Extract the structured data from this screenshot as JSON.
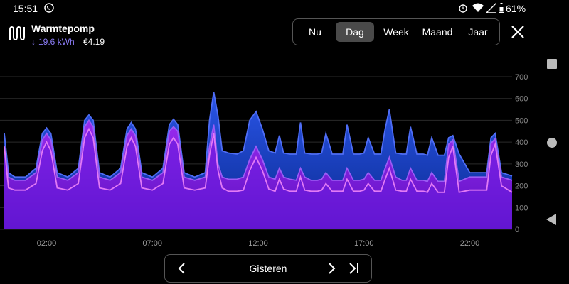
{
  "status": {
    "time": "15:51",
    "battery": "61%"
  },
  "device": {
    "name": "Warmtepomp",
    "consumption": "19.6 kWh",
    "cost": "€4.19"
  },
  "tabs": [
    {
      "label": "Nu",
      "active": false
    },
    {
      "label": "Dag",
      "active": true
    },
    {
      "label": "Week",
      "active": false
    },
    {
      "label": "Maand",
      "active": false
    },
    {
      "label": "Jaar",
      "active": false
    }
  ],
  "pager": {
    "label": "Gisteren"
  },
  "colors": {
    "accent": "#8b7cf6",
    "area_top": "#1f3fbf",
    "area_mid": "#7a20e8",
    "line_top": "#4f6df5",
    "line_mid": "#9b5cf5",
    "line_low": "#e27af5"
  },
  "chart_data": {
    "type": "area",
    "x_ticks": [
      "02:00",
      "07:00",
      "12:00",
      "17:00",
      "22:00"
    ],
    "x_tick_hours": [
      2,
      7,
      12,
      17,
      22
    ],
    "y_ticks": [
      0,
      100,
      200,
      300,
      400,
      500,
      600,
      700
    ],
    "ylim": [
      0,
      700
    ],
    "xlim": [
      0,
      24
    ],
    "series": [
      {
        "x": [
          0,
          0.2,
          0.5,
          1,
          1.5,
          1.8,
          2,
          2.2,
          2.5,
          3,
          3.5,
          3.8,
          4,
          4.2,
          4.5,
          5,
          5.5,
          5.8,
          6,
          6.2,
          6.5,
          7,
          7.5,
          7.8,
          8,
          8.2,
          8.5,
          9,
          9.5,
          9.7,
          9.9,
          10.1,
          10.3,
          10.6,
          11,
          11.3,
          11.6,
          11.9,
          12.2,
          12.5,
          12.8,
          13,
          13.2,
          13.5,
          13.8,
          14,
          14.2,
          14.5,
          14.8,
          15,
          15.2,
          15.5,
          15.8,
          16,
          16.2,
          16.5,
          16.8,
          17,
          17.2,
          17.5,
          17.8,
          18,
          18.2,
          18.5,
          18.8,
          19,
          19.2,
          19.5,
          19.8,
          20,
          20.2,
          20.5,
          20.8,
          21,
          21.2,
          21.5,
          22,
          22.5,
          22.8,
          23,
          23.2,
          23.5,
          24
        ],
        "values": [
          440,
          260,
          240,
          240,
          280,
          440,
          465,
          440,
          260,
          240,
          280,
          500,
          525,
          500,
          260,
          240,
          280,
          460,
          490,
          460,
          260,
          240,
          280,
          480,
          505,
          480,
          260,
          240,
          260,
          500,
          630,
          520,
          360,
          350,
          345,
          360,
          500,
          540,
          460,
          360,
          350,
          430,
          350,
          345,
          345,
          490,
          350,
          345,
          345,
          350,
          440,
          345,
          345,
          345,
          480,
          345,
          345,
          350,
          420,
          345,
          345,
          460,
          550,
          350,
          345,
          345,
          470,
          345,
          345,
          340,
          420,
          340,
          340,
          420,
          430,
          345,
          260,
          260,
          260,
          420,
          440,
          260,
          245
        ]
      },
      {
        "x": [
          0,
          0.2,
          0.5,
          1,
          1.5,
          1.8,
          2,
          2.2,
          2.5,
          3,
          3.5,
          3.8,
          4,
          4.2,
          4.5,
          5,
          5.5,
          5.8,
          6,
          6.2,
          6.5,
          7,
          7.5,
          7.8,
          8,
          8.2,
          8.5,
          9,
          9.5,
          9.7,
          9.9,
          10.1,
          10.3,
          10.6,
          11,
          11.3,
          11.6,
          11.9,
          12.2,
          12.5,
          12.8,
          13,
          13.2,
          13.5,
          13.8,
          14,
          14.2,
          14.5,
          14.8,
          15,
          15.2,
          15.5,
          15.8,
          16,
          16.2,
          16.5,
          16.8,
          17,
          17.2,
          17.5,
          17.8,
          18,
          18.2,
          18.5,
          18.8,
          19,
          19.2,
          19.5,
          19.8,
          20,
          20.2,
          20.5,
          20.8,
          21,
          21.2,
          21.5,
          22,
          22.5,
          22.8,
          23,
          23.2,
          23.5,
          24
        ],
        "values": [
          380,
          240,
          225,
          225,
          260,
          410,
          440,
          410,
          240,
          225,
          260,
          470,
          500,
          470,
          240,
          225,
          260,
          430,
          460,
          430,
          240,
          225,
          260,
          450,
          470,
          450,
          240,
          225,
          240,
          380,
          480,
          300,
          240,
          230,
          230,
          240,
          320,
          380,
          320,
          240,
          230,
          280,
          240,
          230,
          225,
          280,
          240,
          225,
          225,
          230,
          260,
          225,
          225,
          225,
          280,
          225,
          225,
          230,
          260,
          225,
          225,
          280,
          330,
          240,
          225,
          225,
          280,
          225,
          225,
          220,
          260,
          220,
          220,
          390,
          410,
          220,
          240,
          240,
          240,
          395,
          415,
          240,
          225
        ]
      },
      {
        "x": [
          0,
          0.2,
          0.5,
          1,
          1.5,
          1.8,
          2,
          2.2,
          2.5,
          3,
          3.5,
          3.8,
          4,
          4.2,
          4.5,
          5,
          5.5,
          5.8,
          6,
          6.2,
          6.5,
          7,
          7.5,
          7.8,
          8,
          8.2,
          8.5,
          9,
          9.5,
          9.7,
          9.9,
          10.1,
          10.3,
          10.6,
          11,
          11.3,
          11.6,
          11.9,
          12.2,
          12.5,
          12.8,
          13,
          13.2,
          13.5,
          13.8,
          14,
          14.2,
          14.5,
          14.8,
          15,
          15.2,
          15.5,
          15.8,
          16,
          16.2,
          16.5,
          16.8,
          17,
          17.2,
          17.5,
          17.8,
          18,
          18.2,
          18.5,
          18.8,
          19,
          19.2,
          19.5,
          19.8,
          20,
          20.2,
          20.5,
          20.8,
          21,
          21.2,
          21.5,
          22,
          22.5,
          22.8,
          23,
          23.2,
          23.5,
          24
        ],
        "values": [
          380,
          190,
          180,
          180,
          210,
          360,
          400,
          360,
          190,
          180,
          210,
          420,
          460,
          420,
          190,
          180,
          210,
          380,
          420,
          380,
          190,
          180,
          210,
          390,
          420,
          390,
          190,
          180,
          190,
          340,
          440,
          270,
          190,
          175,
          175,
          180,
          270,
          330,
          270,
          185,
          175,
          230,
          185,
          175,
          175,
          240,
          180,
          175,
          175,
          180,
          210,
          175,
          175,
          175,
          230,
          175,
          175,
          180,
          210,
          175,
          175,
          230,
          280,
          180,
          175,
          175,
          230,
          175,
          175,
          170,
          210,
          170,
          170,
          330,
          380,
          170,
          180,
          180,
          180,
          340,
          390,
          200,
          170
        ]
      }
    ]
  }
}
